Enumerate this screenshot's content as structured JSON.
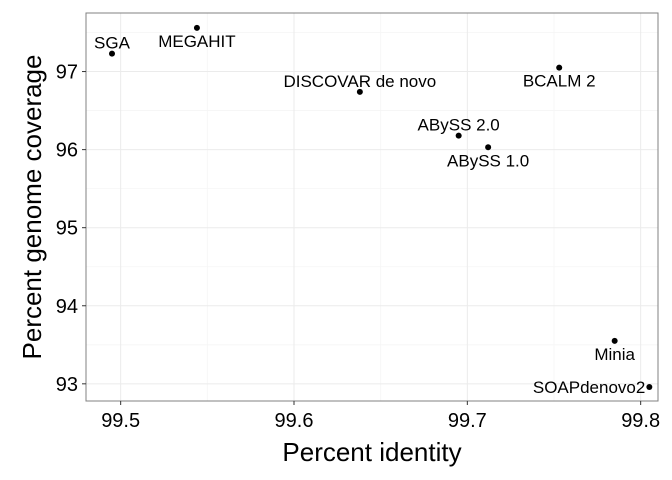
{
  "chart_data": {
    "type": "scatter",
    "xlabel": "Percent identity",
    "ylabel": "Percent genome coverage",
    "xlim": [
      99.48,
      99.81
    ],
    "ylim": [
      92.78,
      97.75
    ],
    "x_ticks": [
      99.5,
      99.6,
      99.7,
      99.8
    ],
    "x_tick_labels": [
      "99.5",
      "99.6",
      "99.7",
      "99.8"
    ],
    "y_ticks": [
      93,
      94,
      95,
      96,
      97
    ],
    "y_tick_labels": [
      "93",
      "94",
      "95",
      "96",
      "97"
    ],
    "grid": true,
    "legend": "none",
    "points": [
      {
        "label": "SGA",
        "x": 99.495,
        "y": 97.23,
        "label_position": "above"
      },
      {
        "label": "MEGAHIT",
        "x": 99.544,
        "y": 97.56,
        "label_position": "below"
      },
      {
        "label": "DISCOVAR de novo",
        "x": 99.638,
        "y": 96.74,
        "label_position": "above"
      },
      {
        "label": "BCALM 2",
        "x": 99.753,
        "y": 97.05,
        "label_position": "below"
      },
      {
        "label": "ABySS 2.0",
        "x": 99.695,
        "y": 96.18,
        "label_position": "above"
      },
      {
        "label": "ABySS 1.0",
        "x": 99.712,
        "y": 96.03,
        "label_position": "below"
      },
      {
        "label": "Minia",
        "x": 99.785,
        "y": 93.55,
        "label_position": "below"
      },
      {
        "label": "SOAPdenovo2",
        "x": 99.805,
        "y": 92.96,
        "label_position": "left"
      }
    ]
  }
}
